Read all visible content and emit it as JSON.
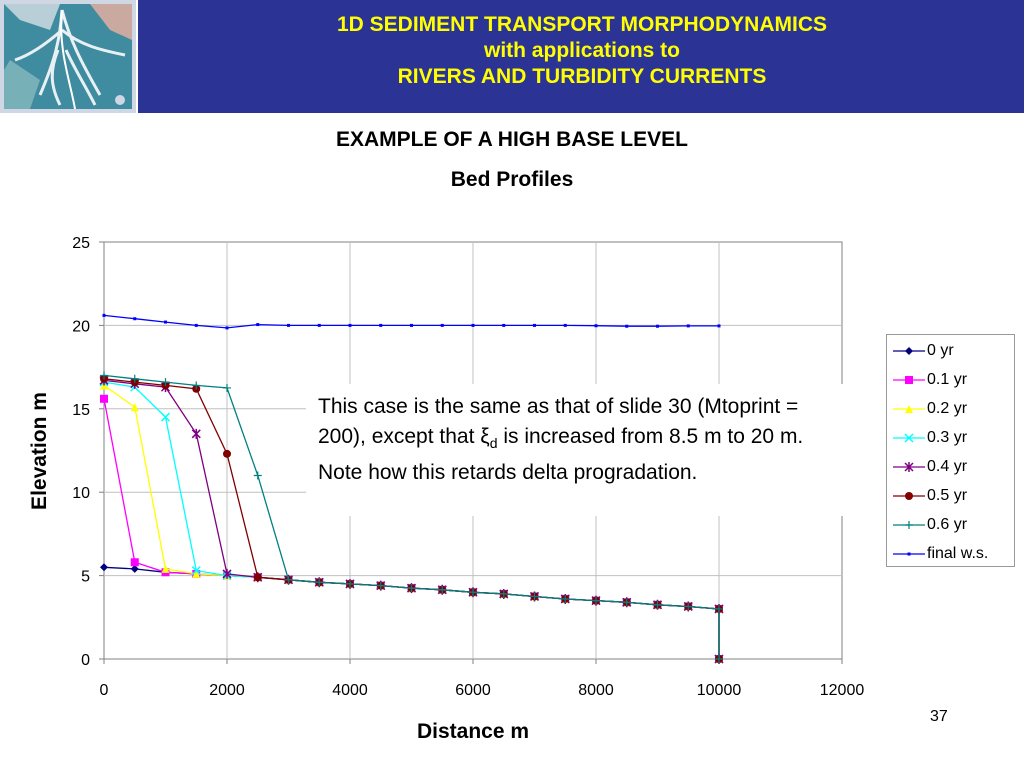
{
  "header": {
    "line1": "1D SEDIMENT TRANSPORT MORPHODYNAMICS",
    "line2": "with applications to",
    "line3": "RIVERS AND TURBIDITY CURRENTS"
  },
  "slide_title": "EXAMPLE OF A HIGH BASE LEVEL",
  "note": {
    "part1": "This case is the same as that of slide 30 (Mtoprint = 200), except that ",
    "xi": "ξ",
    "sub": "d",
    "part2": " is increased from 8.5 m to 20 m.  Note how this retards delta progradation."
  },
  "page_number": "37",
  "chart_data": {
    "type": "line",
    "title": "Bed Profiles",
    "xlabel": "Distance m",
    "ylabel": "Elevation m",
    "xlim": [
      0,
      12000
    ],
    "ylim": [
      0,
      25
    ],
    "x_ticks": [
      "0",
      "2000",
      "4000",
      "6000",
      "8000",
      "10000",
      "12000"
    ],
    "y_ticks": [
      "0",
      "5",
      "10",
      "15",
      "20",
      "25"
    ],
    "grid": "vertical and horizontal",
    "legend_position": "right",
    "series": [
      {
        "name": "0 yr",
        "color": "#000080",
        "marker": "diamond",
        "x": [
          0,
          500,
          1000,
          1500,
          2000,
          2500,
          3000,
          3500,
          4000,
          4500,
          5000,
          5500,
          6000,
          6500,
          7000,
          7500,
          8000,
          8500,
          9000,
          9500,
          10000,
          10000
        ],
        "y": [
          5.5,
          5.4,
          5.2,
          5.1,
          5.0,
          4.9,
          4.75,
          4.6,
          4.5,
          4.4,
          4.25,
          4.15,
          4.0,
          3.9,
          3.75,
          3.6,
          3.5,
          3.4,
          3.25,
          3.15,
          3.0,
          0
        ]
      },
      {
        "name": "0.1 yr",
        "color": "#ff00ff",
        "marker": "square",
        "x": [
          0,
          500,
          1000,
          1500,
          2000,
          2500,
          3000,
          3500,
          4000,
          4500,
          5000,
          5500,
          6000,
          6500,
          7000,
          7500,
          8000,
          8500,
          9000,
          9500,
          10000,
          10000
        ],
        "y": [
          15.6,
          5.8,
          5.2,
          5.1,
          5.0,
          4.9,
          4.75,
          4.6,
          4.5,
          4.4,
          4.25,
          4.15,
          4.0,
          3.9,
          3.75,
          3.6,
          3.5,
          3.4,
          3.25,
          3.15,
          3.0,
          0
        ]
      },
      {
        "name": "0.2 yr",
        "color": "#ffff00",
        "marker": "triangle",
        "x": [
          0,
          500,
          1000,
          1500,
          2000,
          2500,
          3000,
          3500,
          4000,
          4500,
          5000,
          5500,
          6000,
          6500,
          7000,
          7500,
          8000,
          8500,
          9000,
          9500,
          10000,
          10000
        ],
        "y": [
          16.4,
          15.1,
          5.4,
          5.1,
          5.0,
          4.9,
          4.75,
          4.6,
          4.5,
          4.4,
          4.25,
          4.15,
          4.0,
          3.9,
          3.75,
          3.6,
          3.5,
          3.4,
          3.25,
          3.15,
          3.0,
          0
        ]
      },
      {
        "name": "0.3 yr",
        "color": "#00ffff",
        "marker": "x",
        "x": [
          0,
          500,
          1000,
          1500,
          2000,
          2500,
          3000,
          3500,
          4000,
          4500,
          5000,
          5500,
          6000,
          6500,
          7000,
          7500,
          8000,
          8500,
          9000,
          9500,
          10000,
          10000
        ],
        "y": [
          16.6,
          16.3,
          14.5,
          5.3,
          5.0,
          4.9,
          4.75,
          4.6,
          4.5,
          4.4,
          4.25,
          4.15,
          4.0,
          3.9,
          3.75,
          3.6,
          3.5,
          3.4,
          3.25,
          3.15,
          3.0,
          0
        ]
      },
      {
        "name": "0.4 yr",
        "color": "#800080",
        "marker": "star",
        "x": [
          0,
          500,
          1000,
          1500,
          2000,
          2500,
          3000,
          3500,
          4000,
          4500,
          5000,
          5500,
          6000,
          6500,
          7000,
          7500,
          8000,
          8500,
          9000,
          9500,
          10000,
          10000
        ],
        "y": [
          16.7,
          16.5,
          16.3,
          13.5,
          5.1,
          4.9,
          4.75,
          4.6,
          4.5,
          4.4,
          4.25,
          4.15,
          4.0,
          3.9,
          3.75,
          3.6,
          3.5,
          3.4,
          3.25,
          3.15,
          3.0,
          0
        ]
      },
      {
        "name": "0.5 yr",
        "color": "#800000",
        "marker": "circle",
        "x": [
          0,
          500,
          1000,
          1500,
          2000,
          2500,
          3000,
          3500,
          4000,
          4500,
          5000,
          5500,
          6000,
          6500,
          7000,
          7500,
          8000,
          8500,
          9000,
          9500,
          10000,
          10000
        ],
        "y": [
          16.8,
          16.6,
          16.4,
          16.2,
          12.3,
          4.9,
          4.75,
          4.6,
          4.5,
          4.4,
          4.25,
          4.15,
          4.0,
          3.9,
          3.75,
          3.6,
          3.5,
          3.4,
          3.25,
          3.15,
          3.0,
          0
        ]
      },
      {
        "name": "0.6 yr",
        "color": "#008080",
        "marker": "plus",
        "x": [
          0,
          500,
          1000,
          1500,
          2000,
          2500,
          3000,
          3500,
          4000,
          4500,
          5000,
          5500,
          6000,
          6500,
          7000,
          7500,
          8000,
          8500,
          9000,
          9500,
          10000,
          10000
        ],
        "y": [
          17.0,
          16.8,
          16.6,
          16.4,
          16.25,
          11.0,
          4.75,
          4.6,
          4.5,
          4.4,
          4.25,
          4.15,
          4.0,
          3.9,
          3.75,
          3.6,
          3.5,
          3.4,
          3.25,
          3.15,
          3.0,
          0
        ]
      },
      {
        "name": "final w.s.",
        "color": "#0000ff",
        "marker": "dot",
        "x": [
          0,
          500,
          1000,
          1500,
          2000,
          2500,
          3000,
          3500,
          4000,
          4500,
          5000,
          5500,
          6000,
          6500,
          7000,
          7500,
          8000,
          8500,
          9000,
          9500,
          10000
        ],
        "y": [
          20.6,
          20.4,
          20.2,
          20.0,
          19.85,
          20.05,
          20.0,
          20.0,
          20.0,
          20.0,
          20.0,
          20.0,
          20.0,
          20.0,
          20.0,
          20.0,
          19.98,
          19.95,
          19.95,
          19.97,
          19.97
        ]
      }
    ]
  }
}
